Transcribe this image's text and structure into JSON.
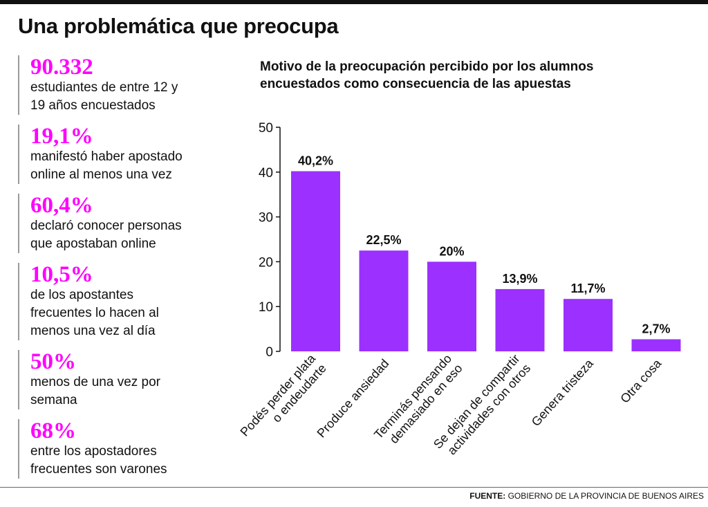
{
  "headline": "Una problemática que preocupa",
  "stats": [
    {
      "value": "90.332",
      "text": [
        "estudiantes de entre 12 y",
        "19 años encuestados"
      ]
    },
    {
      "value": "19,1%",
      "text": [
        "manifestó haber apostado",
        "online al menos una vez"
      ]
    },
    {
      "value": "60,4%",
      "text": [
        "declaró conocer personas",
        "que apostaban online"
      ]
    },
    {
      "value": "10,5%",
      "text": [
        "de los apostantes",
        "frecuentes lo hacen al",
        "menos una vez al día"
      ]
    },
    {
      "value": "50%",
      "text": [
        "menos de una vez por",
        "semana"
      ]
    },
    {
      "value": "68%",
      "text": [
        "entre los apostadores",
        "frecuentes son varones"
      ]
    }
  ],
  "chart_data": {
    "type": "bar",
    "title": "Motivo de la preocupación percibido por los alumnos encuestados como consecuencia de las apuestas",
    "title_lines": [
      "Motivo de la preocupación percibido por los alumnos",
      "encuestados como consecuencia de las apuestas"
    ],
    "categories": [
      [
        "Podés perder plata",
        "o endeudarte"
      ],
      [
        "Produce ansiedad"
      ],
      [
        "Terminás pensando",
        "demasiado en eso"
      ],
      [
        "Se dejan de compartir",
        "actividades con otros"
      ],
      [
        "Genera tristeza"
      ],
      [
        "Otra cosa"
      ]
    ],
    "values": [
      40.2,
      22.5,
      20,
      13.9,
      11.7,
      2.7
    ],
    "value_labels": [
      "40,2%",
      "22,5%",
      "20%",
      "13,9%",
      "11,7%",
      "2,7%"
    ],
    "yticks": [
      0,
      10,
      20,
      30,
      40,
      50
    ],
    "ylim": [
      0,
      50
    ],
    "xlabel": "",
    "ylabel": "",
    "grid": false,
    "color": "#9b30ff"
  },
  "source": {
    "label": "FUENTE:",
    "text": "GOBIERNO DE LA PROVINCIA DE BUENOS AIRES"
  }
}
